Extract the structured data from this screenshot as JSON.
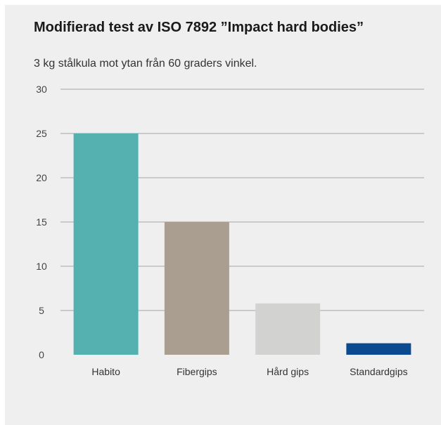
{
  "chart_data": {
    "type": "bar",
    "title": "Modifierad test av ISO 7892 ”Impact hard bodies”",
    "subtitle": "3 kg stålkula mot ytan från 60 graders vinkel.",
    "categories": [
      "Habito",
      "Fibergips",
      "Hård gips",
      "Standardgips"
    ],
    "values": [
      25,
      15,
      5.8,
      1.3
    ],
    "colors": [
      "#55b0b0",
      "#aa9e90",
      "#d2d3d1",
      "#0b4a8f"
    ],
    "yticks": [
      0,
      5,
      10,
      15,
      20,
      25,
      30
    ],
    "ylim": [
      0,
      30
    ],
    "grid": true,
    "legend": "none"
  }
}
